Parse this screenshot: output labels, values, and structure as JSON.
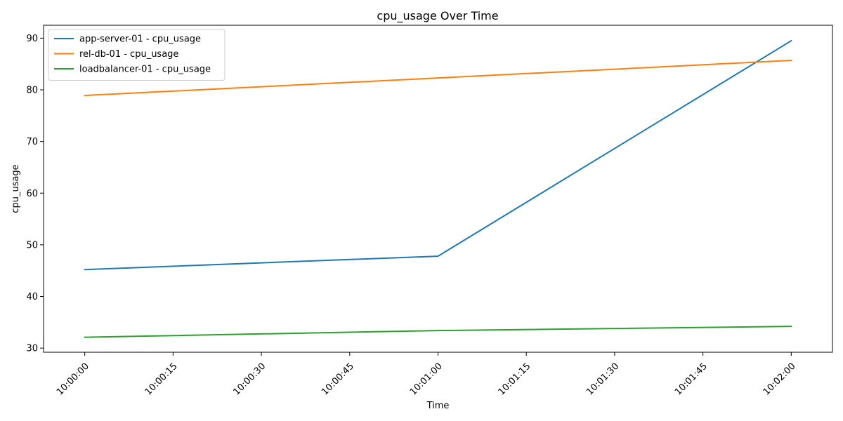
{
  "chart_data": {
    "type": "line",
    "title": "cpu_usage Over Time",
    "xlabel": "Time",
    "ylabel": "cpu_usage",
    "x": [
      "10:00:00",
      "10:01:00",
      "10:02:00"
    ],
    "x_ticks": [
      "10:00:00",
      "10:00:15",
      "10:00:30",
      "10:00:45",
      "10:01:00",
      "10:01:15",
      "10:01:30",
      "10:01:45",
      "10:02:00"
    ],
    "xlim": [
      "09:59:53",
      "10:02:07"
    ],
    "y_ticks": [
      30,
      40,
      50,
      60,
      70,
      80,
      90
    ],
    "ylim": [
      29.2,
      92.5
    ],
    "grid": false,
    "legend_position": "top-left",
    "series": [
      {
        "name": "app-server-01 - cpu_usage",
        "color": "#1f77b4",
        "values": [
          45.2,
          47.8,
          89.5
        ]
      },
      {
        "name": "rel-db-01 - cpu_usage",
        "color": "#ff7f0e",
        "values": [
          78.9,
          82.3,
          85.7
        ]
      },
      {
        "name": "loadbalancer-01 - cpu_usage",
        "color": "#2ca02c",
        "values": [
          32.1,
          33.4,
          34.2
        ]
      }
    ]
  }
}
